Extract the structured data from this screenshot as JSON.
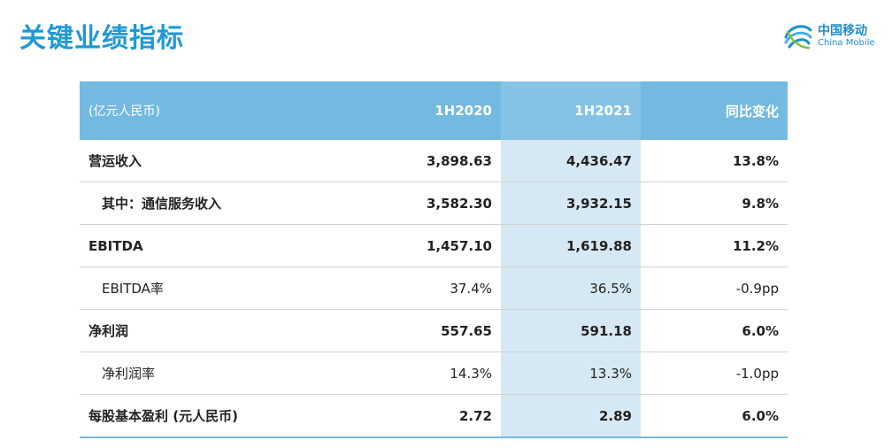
{
  "title": "关键业绩指标",
  "logo": {
    "cn": "中国移动",
    "en": "China Mobile",
    "icon": "china-mobile-logo-icon"
  },
  "colors": {
    "accent": "#1e9ad6",
    "header_bg": "#74b9df",
    "highlight": "#d5e8f3"
  },
  "table": {
    "headers": [
      "(亿元人民币)",
      "1H2020",
      "1H2021",
      "同比变化"
    ],
    "rows": [
      {
        "label": "营运收入",
        "h2020": "3,898.63",
        "h2021": "4,436.47",
        "change": "13.8%"
      },
      {
        "label": "其中：通信服务收入",
        "h2020": "3,582.30",
        "h2021": "3,932.15",
        "change": "9.8%"
      },
      {
        "label": "EBITDA",
        "h2020": "1,457.10",
        "h2021": "1,619.88",
        "change": "11.2%"
      },
      {
        "label": "EBITDA率",
        "h2020": "37.4%",
        "h2021": "36.5%",
        "change": "-0.9pp"
      },
      {
        "label": "净利润",
        "h2020": "557.65",
        "h2021": "591.18",
        "change": "6.0%"
      },
      {
        "label": "净利润率",
        "h2020": "14.3%",
        "h2021": "13.3%",
        "change": "-1.0pp"
      },
      {
        "label": "每股基本盈利 (元人民币)",
        "h2020": "2.72",
        "h2021": "2.89",
        "change": "6.0%"
      }
    ]
  }
}
